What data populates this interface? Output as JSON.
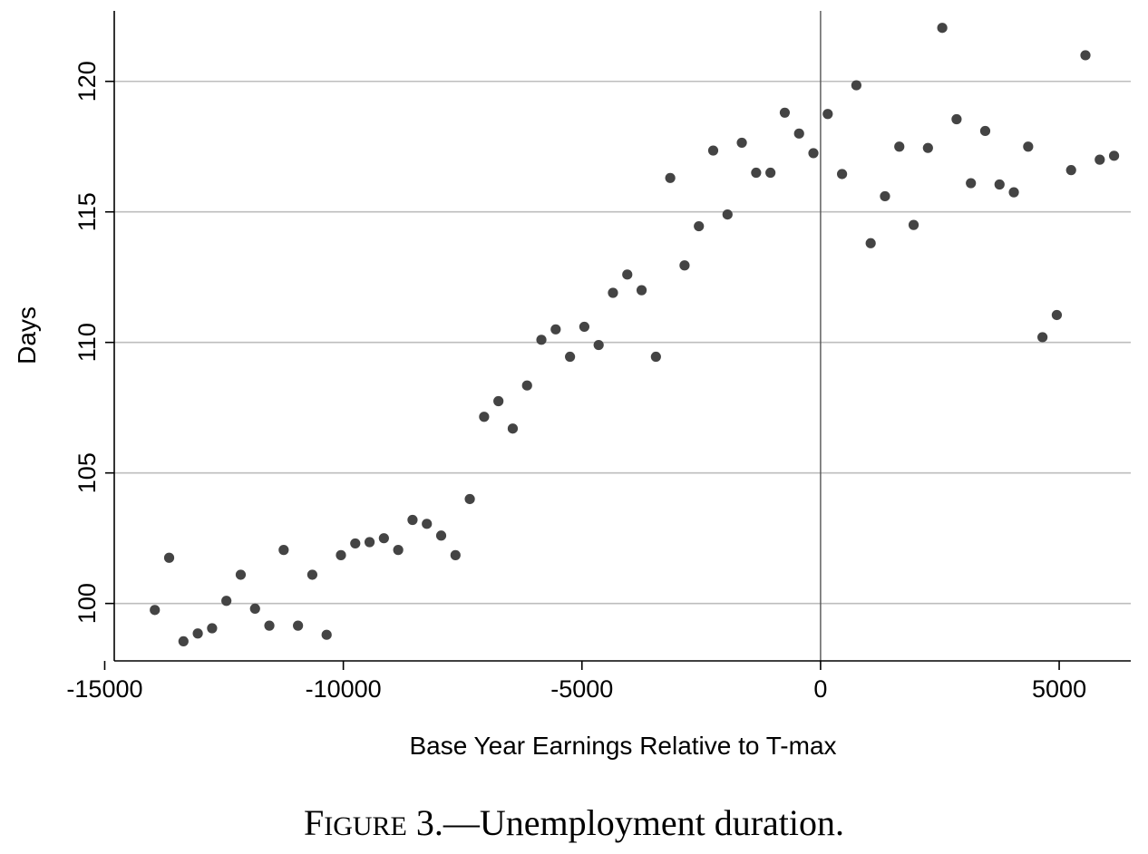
{
  "caption": {
    "figure_initial": "F",
    "figure_small": "IGURE",
    "figure_rest": " 3.—Unemployment duration."
  },
  "chart_data": {
    "type": "scatter",
    "title": "",
    "xlabel": "Base Year Earnings Relative to T-max",
    "ylabel": "Days",
    "xlim": [
      -14800,
      6500
    ],
    "ylim": [
      97.8,
      122.7
    ],
    "x_ticks": [
      -15000,
      -10000,
      -5000,
      0,
      5000
    ],
    "x_tick_labels": [
      "-15000",
      "-10000",
      "-5000",
      "0",
      "5000"
    ],
    "y_ticks": [
      100,
      105,
      110,
      115,
      120
    ],
    "y_tick_labels": [
      "100",
      "105",
      "110",
      "115",
      "120"
    ],
    "grid": {
      "y": true,
      "x": false
    },
    "reference_line_x": 0,
    "point_color": "#444444",
    "grid_color": "#bdbdbd",
    "series": [
      {
        "points": [
          [
            -13950,
            99.75
          ],
          [
            -13650,
            101.75
          ],
          [
            -13350,
            98.55
          ],
          [
            -13050,
            98.85
          ],
          [
            -12750,
            99.05
          ],
          [
            -12450,
            100.1
          ],
          [
            -12150,
            101.1
          ],
          [
            -11850,
            99.8
          ],
          [
            -11550,
            99.15
          ],
          [
            -11250,
            102.05
          ],
          [
            -10950,
            99.15
          ],
          [
            -10650,
            101.1
          ],
          [
            -10350,
            98.8
          ],
          [
            -10050,
            101.85
          ],
          [
            -9750,
            102.3
          ],
          [
            -9450,
            102.35
          ],
          [
            -9150,
            102.5
          ],
          [
            -8850,
            102.05
          ],
          [
            -8550,
            103.2
          ],
          [
            -8250,
            103.05
          ],
          [
            -7950,
            102.6
          ],
          [
            -7650,
            101.85
          ],
          [
            -7350,
            104.0
          ],
          [
            -7050,
            107.15
          ],
          [
            -6750,
            107.75
          ],
          [
            -6450,
            106.7
          ],
          [
            -6150,
            108.35
          ],
          [
            -5850,
            110.1
          ],
          [
            -5550,
            110.5
          ],
          [
            -5250,
            109.45
          ],
          [
            -4950,
            110.6
          ],
          [
            -4650,
            109.9
          ],
          [
            -4350,
            111.9
          ],
          [
            -4050,
            112.6
          ],
          [
            -3750,
            112.0
          ],
          [
            -3450,
            109.45
          ],
          [
            -3150,
            116.3
          ],
          [
            -2850,
            112.95
          ],
          [
            -2550,
            114.45
          ],
          [
            -2250,
            117.35
          ],
          [
            -1950,
            114.9
          ],
          [
            -1650,
            117.65
          ],
          [
            -1350,
            116.5
          ],
          [
            -1050,
            116.5
          ],
          [
            -750,
            118.8
          ],
          [
            -450,
            118.0
          ],
          [
            -150,
            117.25
          ],
          [
            150,
            118.75
          ],
          [
            450,
            116.45
          ],
          [
            750,
            119.85
          ],
          [
            1050,
            113.8
          ],
          [
            1350,
            115.6
          ],
          [
            1650,
            117.5
          ],
          [
            1950,
            114.5
          ],
          [
            2250,
            117.45
          ],
          [
            2550,
            122.05
          ],
          [
            2850,
            118.55
          ],
          [
            3150,
            116.1
          ],
          [
            3450,
            118.1
          ],
          [
            3750,
            116.05
          ],
          [
            4050,
            115.75
          ],
          [
            4350,
            117.5
          ],
          [
            4650,
            110.2
          ],
          [
            4950,
            111.05
          ],
          [
            5250,
            116.6
          ],
          [
            5550,
            121.0
          ],
          [
            5850,
            117.0
          ],
          [
            6150,
            117.15
          ]
        ]
      }
    ]
  }
}
